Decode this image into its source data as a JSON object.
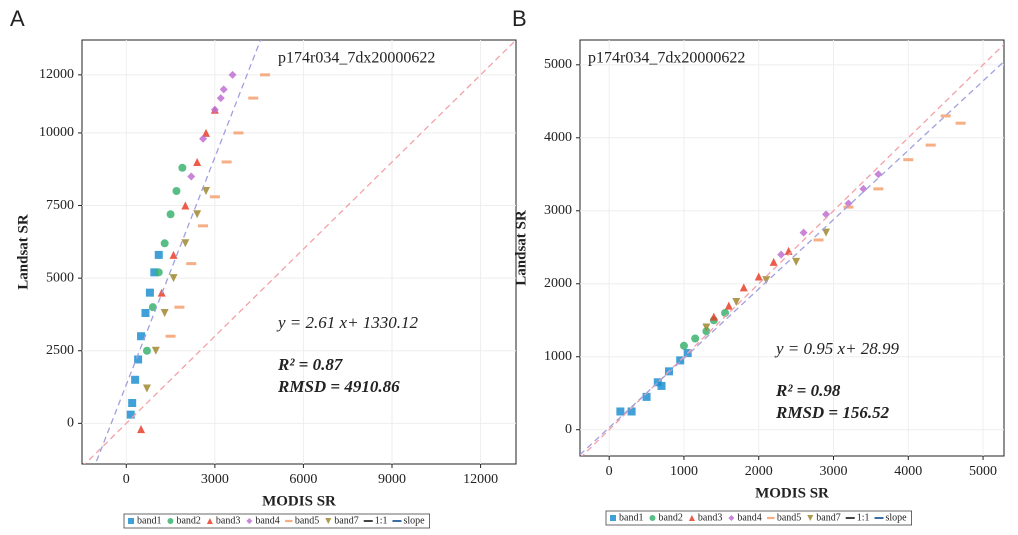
{
  "chart_data": [
    {
      "type": "scatter",
      "panel_label": "A",
      "title": "p174r034_7dx20000622",
      "x_label": "MODIS SR",
      "y_label": "Landsat SR",
      "xlim": [
        -1500,
        13200
      ],
      "ylim": [
        -1400,
        13200
      ],
      "xticks": [
        0,
        3000,
        6000,
        9000,
        12000
      ],
      "yticks": [
        0,
        2500,
        5000,
        7500,
        10000,
        12000
      ],
      "grid": true,
      "series": [
        {
          "name": "band1",
          "color": "#1f8fd0",
          "marker": "square",
          "x": [
            150,
            200,
            300,
            400,
            500,
            650,
            800,
            950,
            1100
          ],
          "y": [
            300,
            700,
            1500,
            2200,
            3000,
            3800,
            4500,
            5200,
            5800
          ]
        },
        {
          "name": "band2",
          "color": "#3cb371",
          "marker": "circle",
          "x": [
            700,
            900,
            1100,
            1300,
            1500,
            1700,
            1900
          ],
          "y": [
            2500,
            4000,
            5200,
            6200,
            7200,
            8000,
            8800
          ]
        },
        {
          "name": "band3",
          "color": "#e8402a",
          "marker": "triangle",
          "x": [
            500,
            1200,
            1600,
            2000,
            2400,
            2700,
            3000
          ],
          "y": [
            -200,
            4500,
            5800,
            7500,
            9000,
            10000,
            10800
          ]
        },
        {
          "name": "band4",
          "color": "#c070d0",
          "marker": "diamond",
          "x": [
            2200,
            2600,
            3000,
            3300,
            3600,
            3200
          ],
          "y": [
            8500,
            9800,
            10800,
            11500,
            12000,
            11200
          ]
        },
        {
          "name": "band5",
          "color": "#f4a070",
          "marker": "dash",
          "x": [
            1500,
            1800,
            2200,
            2600,
            3000,
            3400,
            3800,
            4300,
            4700
          ],
          "y": [
            3000,
            4000,
            5500,
            6800,
            7800,
            9000,
            10000,
            11200,
            12000
          ]
        },
        {
          "name": "band7",
          "color": "#a08830",
          "marker": "triangle-down",
          "x": [
            700,
            1000,
            1300,
            1600,
            2000,
            2400,
            2700
          ],
          "y": [
            1200,
            2500,
            3800,
            5000,
            6200,
            7200,
            8000
          ]
        }
      ],
      "reference_lines": [
        {
          "name": "1:1",
          "color": "#f4a0a8"
        },
        {
          "name": "slope",
          "color": "#a0a0e0"
        }
      ],
      "fit": {
        "slope": 2.61,
        "intercept": 1330.12
      },
      "equation": "y = 2.61 x+ 1330.12",
      "r2": "R² = 0.87",
      "rmsd": "RMSD = 4910.86"
    },
    {
      "type": "scatter",
      "panel_label": "B",
      "title": "p174r034_7dx20000622",
      "x_label": "MODIS SR",
      "y_label": "Landsat SR",
      "xlim": [
        -390,
        5280
      ],
      "ylim": [
        -360,
        5340
      ],
      "xticks": [
        0,
        1000,
        2000,
        3000,
        4000,
        5000
      ],
      "yticks": [
        0,
        1000,
        2000,
        3000,
        4000,
        5000
      ],
      "grid": true,
      "series": [
        {
          "name": "band1",
          "color": "#1f8fd0",
          "marker": "square",
          "x": [
            150,
            300,
            500,
            650,
            800,
            950,
            1050,
            700
          ],
          "y": [
            250,
            250,
            450,
            650,
            800,
            950,
            1050,
            600
          ]
        },
        {
          "name": "band2",
          "color": "#3cb371",
          "marker": "circle",
          "x": [
            1000,
            1150,
            1300,
            1400,
            1550
          ],
          "y": [
            1150,
            1250,
            1350,
            1500,
            1600
          ]
        },
        {
          "name": "band3",
          "color": "#e8402a",
          "marker": "triangle",
          "x": [
            1400,
            1600,
            1800,
            2000,
            2200,
            2400
          ],
          "y": [
            1550,
            1700,
            1950,
            2100,
            2300,
            2450
          ]
        },
        {
          "name": "band4",
          "color": "#c070d0",
          "marker": "diamond",
          "x": [
            2300,
            2600,
            2900,
            3200,
            3400,
            3600
          ],
          "y": [
            2400,
            2700,
            2950,
            3100,
            3300,
            3500
          ]
        },
        {
          "name": "band5",
          "color": "#f4a070",
          "marker": "dash",
          "x": [
            2800,
            3200,
            3600,
            4000,
            4300,
            4500,
            4700
          ],
          "y": [
            2600,
            3050,
            3300,
            3700,
            3900,
            4300,
            4200
          ]
        },
        {
          "name": "band7",
          "color": "#a08830",
          "marker": "triangle-down",
          "x": [
            1300,
            1700,
            2100,
            2500,
            2900
          ],
          "y": [
            1400,
            1750,
            2050,
            2300,
            2700
          ]
        }
      ],
      "reference_lines": [
        {
          "name": "1:1",
          "color": "#f4a0a8"
        },
        {
          "name": "slope",
          "color": "#a0a0e0"
        }
      ],
      "fit": {
        "slope": 0.95,
        "intercept": 28.99
      },
      "equation": "y = 0.95 x+ 28.99",
      "r2": "R² = 0.98",
      "rmsd": "RMSD = 156.52"
    }
  ]
}
